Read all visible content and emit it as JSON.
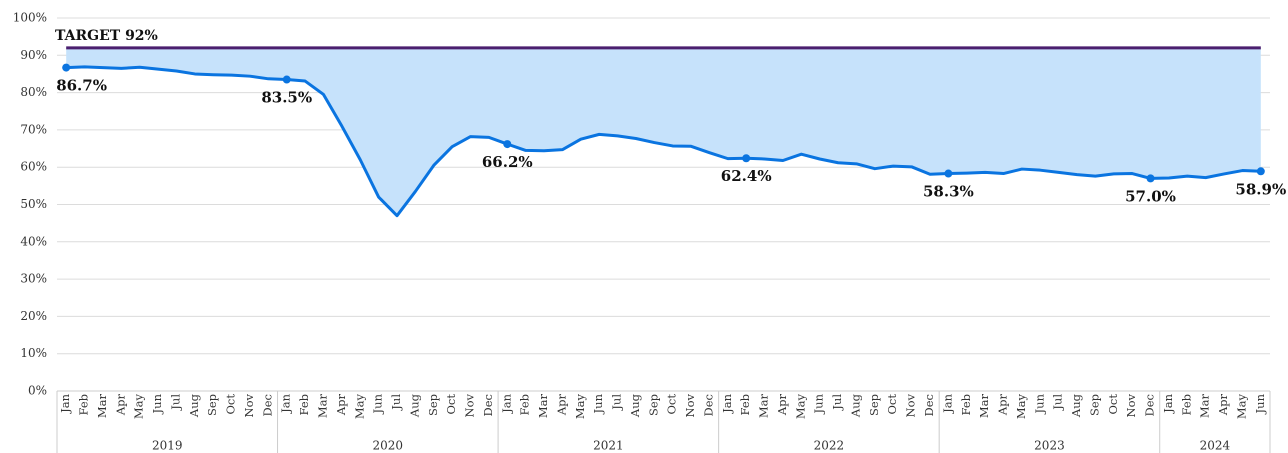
{
  "chart_data": {
    "type": "line",
    "categories": [
      "Jan",
      "Feb",
      "Mar",
      "Apr",
      "May",
      "Jun",
      "Jul",
      "Aug",
      "Sep",
      "Oct",
      "Nov",
      "Dec",
      "Jan",
      "Feb",
      "Mar",
      "Apr",
      "May",
      "Jun",
      "Jul",
      "Aug",
      "Sep",
      "Oct",
      "Nov",
      "Dec",
      "Jan",
      "Feb",
      "Mar",
      "Apr",
      "May",
      "Jun",
      "Jul",
      "Aug",
      "Sep",
      "Oct",
      "Nov",
      "Dec",
      "Jan",
      "Feb",
      "Mar",
      "Apr",
      "May",
      "Jun",
      "Jul",
      "Aug",
      "Sep",
      "Oct",
      "Nov",
      "Dec",
      "Jan",
      "Feb",
      "Mar",
      "Apr",
      "May",
      "Jun",
      "Jul",
      "Aug",
      "Sep",
      "Oct",
      "Nov",
      "Dec",
      "Jan",
      "Feb",
      "Mar",
      "Apr",
      "May",
      "Jun"
    ],
    "year_groups": [
      "2019",
      "2020",
      "2021",
      "2022",
      "2023",
      "2024"
    ],
    "values": [
      86.7,
      86.9,
      86.7,
      86.5,
      86.8,
      86.3,
      85.8,
      85.0,
      84.8,
      84.7,
      84.4,
      83.7,
      83.5,
      83.1,
      79.5,
      71.0,
      62.0,
      52.0,
      47.0,
      53.5,
      60.5,
      65.5,
      68.2,
      68.0,
      66.2,
      64.5,
      64.4,
      64.7,
      67.5,
      68.8,
      68.4,
      67.7,
      66.6,
      65.7,
      65.6,
      63.9,
      62.3,
      62.4,
      62.2,
      61.8,
      63.5,
      62.2,
      61.2,
      60.9,
      59.6,
      60.3,
      60.1,
      58.1,
      58.3,
      58.4,
      58.6,
      58.3,
      59.5,
      59.2,
      58.6,
      58.0,
      57.6,
      58.2,
      58.3,
      57.0,
      57.1,
      57.6,
      57.2,
      58.2,
      59.1,
      58.9
    ],
    "value_labels": [
      "86.7%",
      null,
      null,
      null,
      null,
      null,
      null,
      null,
      null,
      null,
      null,
      null,
      "83.5%",
      null,
      null,
      null,
      null,
      null,
      null,
      null,
      null,
      null,
      null,
      null,
      "66.2%",
      null,
      null,
      null,
      null,
      null,
      null,
      null,
      null,
      null,
      null,
      null,
      null,
      "62.4%",
      null,
      null,
      null,
      null,
      null,
      null,
      null,
      null,
      null,
      null,
      "58.3%",
      null,
      null,
      null,
      null,
      null,
      null,
      null,
      null,
      null,
      null,
      "57.0%",
      null,
      null,
      null,
      null,
      null,
      "58.9%"
    ],
    "color": "#0a74e0",
    "fill_color": "#c6e2fb",
    "target": 92,
    "target_label": "TARGET 92%",
    "target_color": "#4b1f6f",
    "ylim": [
      0,
      100
    ],
    "yticks": [
      {
        "value": 0,
        "label": "0%"
      },
      {
        "value": 10,
        "label": "10%"
      },
      {
        "value": 20,
        "label": "20%"
      },
      {
        "value": 30,
        "label": "30%"
      },
      {
        "value": 40,
        "label": "40%"
      },
      {
        "value": 50,
        "label": "50%"
      },
      {
        "value": 60,
        "label": "60%"
      },
      {
        "value": 70,
        "label": "70%"
      },
      {
        "value": 80,
        "label": "80%"
      },
      {
        "value": 90,
        "label": "90%"
      },
      {
        "value": 100,
        "label": "100%"
      }
    ],
    "grid": true
  }
}
